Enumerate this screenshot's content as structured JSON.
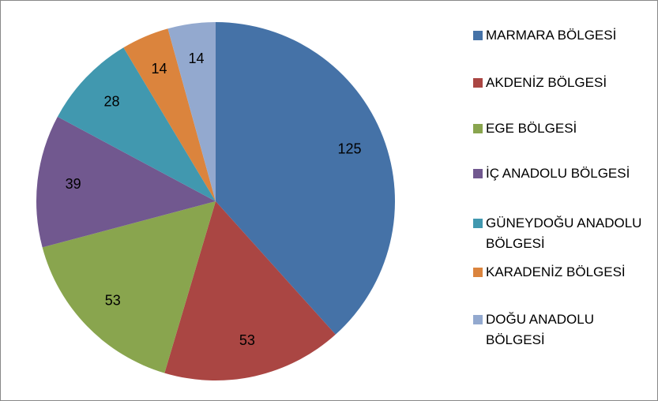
{
  "chart_data": {
    "type": "pie",
    "categories": [
      "MARMARA BÖLGESİ",
      "AKDENİZ BÖLGESİ",
      "EGE BÖLGESİ",
      "İÇ ANADOLU BÖLGESİ",
      "GÜNEYDOĞU ANADOLU BÖLGESİ",
      "KARADENİZ BÖLGESİ",
      "DOĞU ANADOLU BÖLGESİ"
    ],
    "values": [
      125,
      53,
      53,
      39,
      28,
      14,
      14
    ],
    "colors": [
      "#4572a7",
      "#aa4643",
      "#89a54e",
      "#71588f",
      "#4198af",
      "#db843d",
      "#93a9cf"
    ],
    "legend": "right"
  }
}
